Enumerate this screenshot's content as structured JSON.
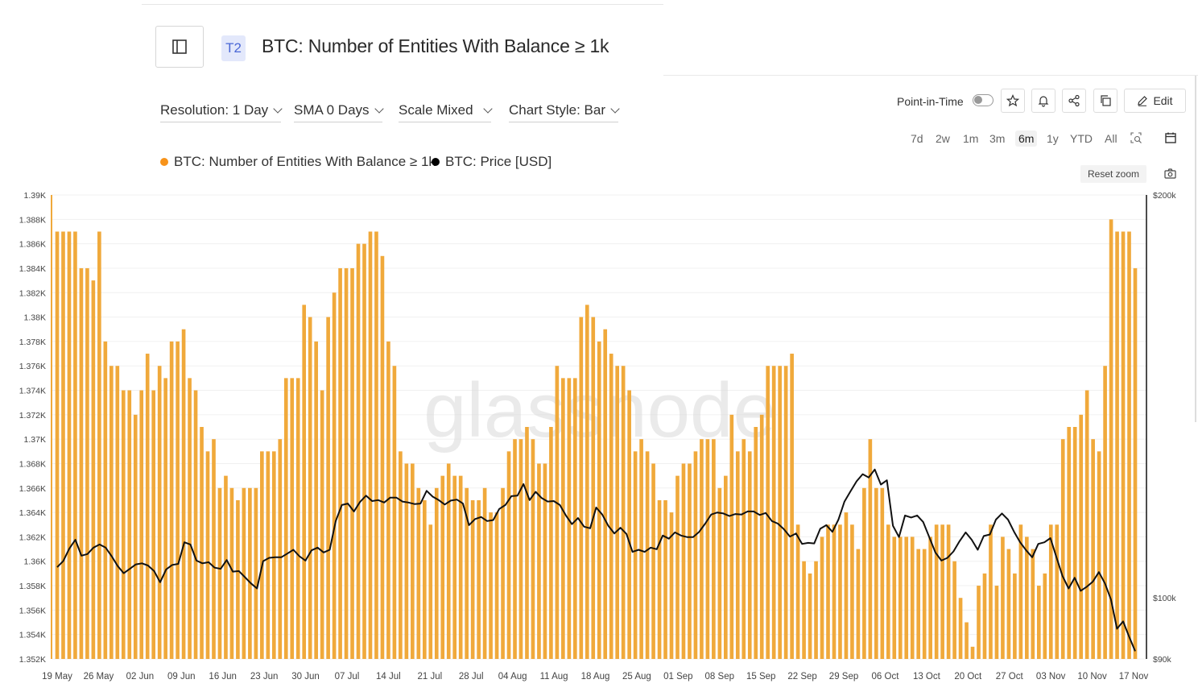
{
  "header": {
    "tier": "T2",
    "title": "BTC: Number of Entities With Balance ≥ 1k"
  },
  "controls": {
    "resolution": "Resolution: 1 Day",
    "sma": "SMA 0 Days",
    "scale": "Scale Mixed",
    "chart_style": "Chart Style: Bar"
  },
  "toolbar": {
    "point_in_time": "Point-in-Time",
    "edit": "Edit",
    "reset_zoom": "Reset zoom",
    "ranges": [
      "7d",
      "2w",
      "1m",
      "3m",
      "6m",
      "1y",
      "YTD",
      "All"
    ],
    "active_range": "6m"
  },
  "legend": [
    {
      "label": "BTC: Number of Entities With Balance ≥ 1k",
      "color": "#f7931a"
    },
    {
      "label": "BTC: Price [USD]",
      "color": "#000000"
    }
  ],
  "watermark": "glassnode",
  "colors": {
    "bar": "#f0a93b",
    "line": "#111111",
    "brand_orange": "#f7931a"
  },
  "chart_data": {
    "type": "bar",
    "left_axis": {
      "ticks": [
        "1.352K",
        "1.354K",
        "1.356K",
        "1.358K",
        "1.36K",
        "1.362K",
        "1.364K",
        "1.366K",
        "1.368K",
        "1.37K",
        "1.372K",
        "1.374K",
        "1.376K",
        "1.378K",
        "1.38K",
        "1.382K",
        "1.384K",
        "1.386K",
        "1.388K",
        "1.39K"
      ],
      "range": [
        1352,
        1390
      ],
      "unit_note": "thousands"
    },
    "right_axis": {
      "ticks": [
        "$90k",
        "$100k",
        "$200k"
      ],
      "scale": "log",
      "range": [
        90000,
        200000
      ]
    },
    "x_labels": [
      "19 May",
      "26 May",
      "02 Jun",
      "09 Jun",
      "16 Jun",
      "23 Jun",
      "30 Jun",
      "07 Jul",
      "14 Jul",
      "21 Jul",
      "28 Jul",
      "04 Aug",
      "11 Aug",
      "18 Aug",
      "25 Aug",
      "01 Sep",
      "08 Sep",
      "15 Sep",
      "22 Sep",
      "29 Sep",
      "06 Oct",
      "13 Oct",
      "20 Oct",
      "27 Oct",
      "03 Nov",
      "10 Nov",
      "17 Nov"
    ],
    "series": [
      {
        "name": "BTC: Number of Entities With Balance ≥ 1k",
        "values": [
          1387,
          1387,
          1387,
          1387,
          1384,
          1384,
          1383,
          1387,
          1378,
          1376,
          1376,
          1374,
          1374,
          1372,
          1374,
          1377,
          1374,
          1376,
          1375,
          1378,
          1378,
          1379,
          1375,
          1374,
          1371,
          1369,
          1370,
          1366,
          1367,
          1366,
          1365,
          1366,
          1366,
          1366,
          1369,
          1369,
          1369,
          1370,
          1375,
          1375,
          1375,
          1381,
          1380,
          1378,
          1374,
          1380,
          1382,
          1384,
          1384,
          1384,
          1386,
          1386,
          1387,
          1387,
          1385,
          1378,
          1376,
          1369,
          1368,
          1368,
          1366,
          1365,
          1363,
          1366,
          1367,
          1368,
          1367,
          1367,
          1366,
          1365,
          1365,
          1366,
          1364,
          1364,
          1366,
          1369,
          1370,
          1370,
          1371,
          1370,
          1368,
          1368,
          1371,
          1376,
          1375,
          1375,
          1375,
          1380,
          1381,
          1380,
          1378,
          1379,
          1377,
          1376,
          1376,
          1374,
          1369,
          1370,
          1369,
          1368,
          1365,
          1365,
          1364,
          1367,
          1368,
          1368,
          1369,
          1370,
          1370,
          1370,
          1366,
          1367,
          1372,
          1369,
          1370,
          1369,
          1371,
          1372,
          1376,
          1376,
          1376,
          1376,
          1377,
          1363,
          1360,
          1359,
          1360,
          1362,
          1363,
          1363,
          1363,
          1364,
          1363,
          1361,
          1366,
          1370,
          1366,
          1366,
          1363,
          1362,
          1362,
          1362,
          1362,
          1361,
          1361,
          1362,
          1363,
          1363,
          1363,
          1360,
          1357,
          1355,
          1353,
          1358,
          1359,
          1363,
          1358,
          1362,
          1361,
          1359,
          1363,
          1362,
          1361,
          1358,
          1359,
          1363,
          1363,
          1370,
          1371,
          1371,
          1372,
          1374,
          1370,
          1369,
          1376,
          1388,
          1387,
          1387,
          1387,
          1384
        ]
      },
      {
        "name": "BTC: Price [USD]",
        "values": [
          105400,
          106500,
          108800,
          110500,
          107500,
          107800,
          109000,
          109600,
          109000,
          107400,
          105600,
          104300,
          105100,
          105900,
          106100,
          105700,
          104700,
          102700,
          105000,
          105800,
          106000,
          110000,
          109600,
          106600,
          106100,
          106300,
          105300,
          105100,
          106700,
          104600,
          104700,
          103600,
          102500,
          101600,
          106500,
          107100,
          107200,
          107200,
          107900,
          108600,
          107400,
          106600,
          108500,
          109000,
          108100,
          108600,
          114100,
          117300,
          117600,
          116000,
          117900,
          119200,
          118100,
          118300,
          117800,
          118800,
          118800,
          118000,
          117800,
          117500,
          117600,
          120200,
          119000,
          118300,
          117400,
          118200,
          118400,
          117600,
          113300,
          114500,
          114900,
          114100,
          114300,
          116500,
          117300,
          119100,
          119200,
          121600,
          118300,
          120000,
          118700,
          118000,
          118100,
          117300,
          115200,
          113500,
          114700,
          113000,
          112700,
          116800,
          115400,
          113200,
          111700,
          112800,
          111600,
          108200,
          108600,
          108200,
          109000,
          108700,
          111300,
          110700,
          111900,
          111300,
          111000,
          111000,
          112000,
          113600,
          115400,
          115800,
          115600,
          115100,
          115500,
          115400,
          116000,
          116000,
          115300,
          115700,
          114100,
          113600,
          112500,
          111100,
          111700,
          109700,
          109900,
          109800,
          112600,
          113300,
          112000,
          114400,
          118000,
          120100,
          122200,
          123700,
          123000,
          124700,
          121500,
          122400,
          113200,
          111000,
          115200,
          114800,
          115200,
          113900,
          111000,
          108100,
          106600,
          107100,
          108300,
          110200,
          111900,
          110500,
          108600,
          111200,
          111500,
          114400,
          115600,
          114400,
          112000,
          110000,
          108500,
          107200,
          109700,
          110000,
          110800,
          107200,
          103800,
          101600,
          103500,
          101200,
          101900,
          102800,
          104500,
          102500,
          99700,
          94800,
          96000,
          93500,
          91200
        ]
      }
    ]
  }
}
